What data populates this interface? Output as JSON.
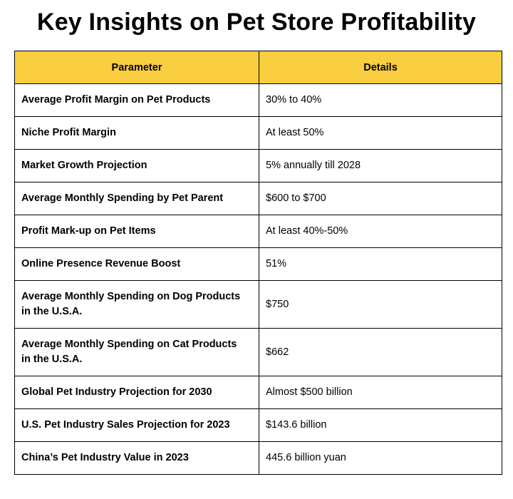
{
  "title": "Key Insights on Pet Store Profitability",
  "table": {
    "headers": [
      "Parameter",
      "Details"
    ],
    "rows": [
      {
        "parameter": "Average Profit Margin on Pet Products",
        "details": "30% to 40%"
      },
      {
        "parameter": "Niche Profit Margin",
        "details": "At least 50%"
      },
      {
        "parameter": "Market Growth Projection",
        "details": "5% annually till 2028"
      },
      {
        "parameter": "Average Monthly Spending by Pet Parent",
        "details": "$600 to $700"
      },
      {
        "parameter": "Profit Mark-up on Pet Items",
        "details": "At least 40%-50%"
      },
      {
        "parameter": "Online Presence Revenue Boost",
        "details": "51%"
      },
      {
        "parameter": "Average Monthly Spending on Dog Products in the U.S.A.",
        "details": "$750"
      },
      {
        "parameter": "Average Monthly Spending on Cat Products in the U.S.A.",
        "details": "$662"
      },
      {
        "parameter": "Global Pet Industry Projection for 2030",
        "details": "Almost $500 billion"
      },
      {
        "parameter": "U.S. Pet Industry Sales Projection for 2023",
        "details": "$143.6 billion"
      },
      {
        "parameter": "China’s Pet Industry Value in 2023",
        "details": "445.6 billion yuan"
      }
    ]
  },
  "colors": {
    "header_background": "#F9CE40",
    "border": "#000000"
  }
}
